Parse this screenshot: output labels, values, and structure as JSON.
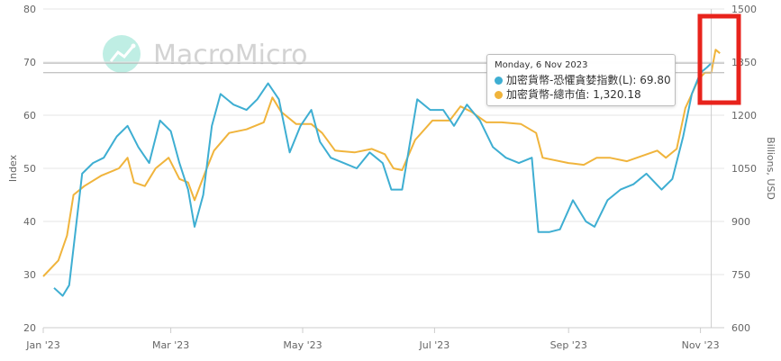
{
  "brand": {
    "watermark": "MacroMicro",
    "logo_icon": "macromicro-logo-icon"
  },
  "tooltip": {
    "date": "Monday, 6 Nov 2023",
    "rows": [
      {
        "label": "加密貨幣-恐懼貪婪指數(L)",
        "value": "69.80",
        "color": "#3eaed2"
      },
      {
        "label": "加密貨幣-總市值",
        "value": "1,320.18",
        "color": "#f0b43c"
      }
    ]
  },
  "highlight": {
    "color": "#e8231c",
    "target": "latest-values"
  },
  "chart_data": {
    "type": "line",
    "x_type": "date",
    "x_range": [
      "2023-01-01",
      "2023-11-12"
    ],
    "x_tick_labels": [
      "Jan '23",
      "Mar '23",
      "May '23",
      "Jul '23",
      "Sep '23",
      "Nov '23"
    ],
    "x_tick_dates": [
      "2023-01-01",
      "2023-03-01",
      "2023-05-01",
      "2023-07-01",
      "2023-09-01",
      "2023-11-01"
    ],
    "y_left": {
      "label": "Index",
      "ylim": [
        20,
        80
      ],
      "ticks": [
        "20",
        "30",
        "40",
        "50",
        "60",
        "70",
        "80"
      ]
    },
    "y_right": {
      "label": "Billions, USD",
      "ylim": [
        600,
        1500
      ],
      "ticks": [
        "600",
        "750",
        "900",
        "1050",
        "1200",
        "1350",
        "1500"
      ]
    },
    "grid": true,
    "crosshair_date": "2023-11-06",
    "series": [
      {
        "name": "加密貨幣-恐懼貪婪指數(L)",
        "axis": "left",
        "color": "#3eaed2",
        "points": [
          [
            "2023-01-06",
            27.5
          ],
          [
            "2023-01-10",
            26
          ],
          [
            "2023-01-13",
            28
          ],
          [
            "2023-01-19",
            49
          ],
          [
            "2023-01-24",
            51
          ],
          [
            "2023-01-29",
            52
          ],
          [
            "2023-02-04",
            56
          ],
          [
            "2023-02-09",
            58
          ],
          [
            "2023-02-14",
            54
          ],
          [
            "2023-02-19",
            51
          ],
          [
            "2023-02-24",
            59
          ],
          [
            "2023-03-01",
            57
          ],
          [
            "2023-03-05",
            51
          ],
          [
            "2023-03-09",
            46
          ],
          [
            "2023-03-12",
            39
          ],
          [
            "2023-03-16",
            45
          ],
          [
            "2023-03-20",
            58
          ],
          [
            "2023-03-24",
            64
          ],
          [
            "2023-03-30",
            62
          ],
          [
            "2023-04-05",
            61
          ],
          [
            "2023-04-10",
            63
          ],
          [
            "2023-04-15",
            66
          ],
          [
            "2023-04-20",
            63
          ],
          [
            "2023-04-25",
            53
          ],
          [
            "2023-04-30",
            58
          ],
          [
            "2023-05-05",
            61
          ],
          [
            "2023-05-09",
            55
          ],
          [
            "2023-05-14",
            52
          ],
          [
            "2023-05-20",
            51
          ],
          [
            "2023-05-26",
            50
          ],
          [
            "2023-06-01",
            53
          ],
          [
            "2023-06-07",
            51
          ],
          [
            "2023-06-11",
            46
          ],
          [
            "2023-06-16",
            46
          ],
          [
            "2023-06-23",
            63
          ],
          [
            "2023-06-29",
            61
          ],
          [
            "2023-07-05",
            61
          ],
          [
            "2023-07-10",
            58
          ],
          [
            "2023-07-16",
            62
          ],
          [
            "2023-07-22",
            59
          ],
          [
            "2023-07-28",
            54
          ],
          [
            "2023-08-03",
            52
          ],
          [
            "2023-08-09",
            51
          ],
          [
            "2023-08-15",
            52
          ],
          [
            "2023-08-18",
            38
          ],
          [
            "2023-08-23",
            38
          ],
          [
            "2023-08-28",
            38.5
          ],
          [
            "2023-09-03",
            44
          ],
          [
            "2023-09-09",
            40
          ],
          [
            "2023-09-13",
            39
          ],
          [
            "2023-09-19",
            44
          ],
          [
            "2023-09-25",
            46
          ],
          [
            "2023-10-01",
            47
          ],
          [
            "2023-10-07",
            49
          ],
          [
            "2023-10-14",
            46
          ],
          [
            "2023-10-19",
            48
          ],
          [
            "2023-10-24",
            56
          ],
          [
            "2023-10-28",
            64
          ],
          [
            "2023-11-01",
            68
          ],
          [
            "2023-11-04",
            69
          ],
          [
            "2023-11-06",
            69.8
          ]
        ]
      },
      {
        "name": "加密貨幣-總市值",
        "axis": "right",
        "color": "#f0b43c",
        "points": [
          [
            "2023-01-01",
            745
          ],
          [
            "2023-01-08",
            790
          ],
          [
            "2023-01-12",
            860
          ],
          [
            "2023-01-15",
            975
          ],
          [
            "2023-01-20",
            1000
          ],
          [
            "2023-01-28",
            1030
          ],
          [
            "2023-02-05",
            1050
          ],
          [
            "2023-02-09",
            1080
          ],
          [
            "2023-02-12",
            1010
          ],
          [
            "2023-02-17",
            1000
          ],
          [
            "2023-02-22",
            1050
          ],
          [
            "2023-02-28",
            1080
          ],
          [
            "2023-03-05",
            1020
          ],
          [
            "2023-03-09",
            1010
          ],
          [
            "2023-03-12",
            960
          ],
          [
            "2023-03-17",
            1040
          ],
          [
            "2023-03-21",
            1100
          ],
          [
            "2023-03-28",
            1150
          ],
          [
            "2023-04-05",
            1160
          ],
          [
            "2023-04-13",
            1180
          ],
          [
            "2023-04-17",
            1250
          ],
          [
            "2023-04-21",
            1210
          ],
          [
            "2023-04-28",
            1175
          ],
          [
            "2023-05-05",
            1175
          ],
          [
            "2023-05-10",
            1150
          ],
          [
            "2023-05-16",
            1100
          ],
          [
            "2023-05-25",
            1095
          ],
          [
            "2023-06-02",
            1105
          ],
          [
            "2023-06-08",
            1090
          ],
          [
            "2023-06-12",
            1050
          ],
          [
            "2023-06-16",
            1045
          ],
          [
            "2023-06-22",
            1130
          ],
          [
            "2023-06-30",
            1185
          ],
          [
            "2023-07-08",
            1185
          ],
          [
            "2023-07-13",
            1225
          ],
          [
            "2023-07-18",
            1210
          ],
          [
            "2023-07-25",
            1180
          ],
          [
            "2023-08-01",
            1180
          ],
          [
            "2023-08-10",
            1175
          ],
          [
            "2023-08-17",
            1150
          ],
          [
            "2023-08-20",
            1080
          ],
          [
            "2023-09-01",
            1065
          ],
          [
            "2023-09-08",
            1060
          ],
          [
            "2023-09-14",
            1080
          ],
          [
            "2023-09-20",
            1080
          ],
          [
            "2023-09-28",
            1070
          ],
          [
            "2023-10-05",
            1085
          ],
          [
            "2023-10-12",
            1100
          ],
          [
            "2023-10-16",
            1080
          ],
          [
            "2023-10-21",
            1105
          ],
          [
            "2023-10-25",
            1220
          ],
          [
            "2023-10-31",
            1300
          ],
          [
            "2023-11-03",
            1320
          ],
          [
            "2023-11-06",
            1320.18
          ],
          [
            "2023-11-08",
            1385
          ],
          [
            "2023-11-10",
            1375
          ]
        ]
      }
    ]
  }
}
